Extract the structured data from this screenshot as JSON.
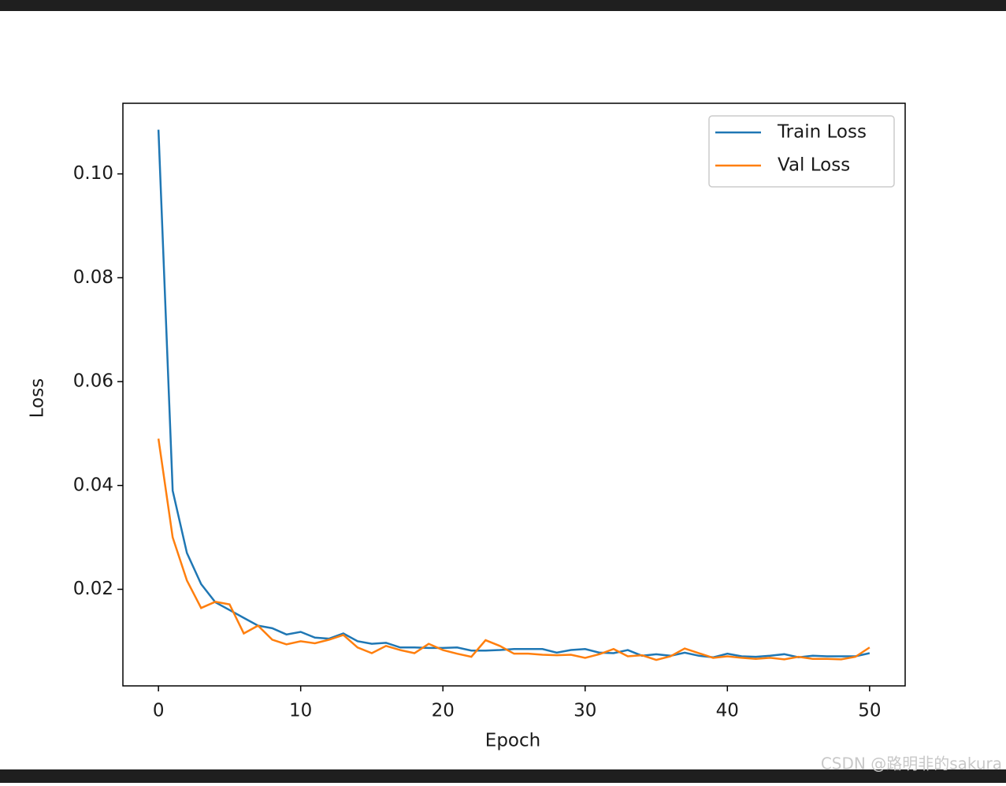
{
  "chart_data": {
    "type": "line",
    "xlabel": "Epoch",
    "ylabel": "Loss",
    "x": [
      0,
      1,
      2,
      3,
      4,
      5,
      6,
      7,
      8,
      9,
      10,
      11,
      12,
      13,
      14,
      15,
      16,
      17,
      18,
      19,
      20,
      21,
      22,
      23,
      24,
      25,
      26,
      27,
      28,
      29,
      30,
      31,
      32,
      33,
      34,
      35,
      36,
      37,
      38,
      39,
      40,
      41,
      42,
      43,
      44,
      45,
      46,
      47,
      48,
      49,
      50
    ],
    "series": [
      {
        "name": "Train Loss",
        "color": "#1f77b4",
        "values": [
          0.1085,
          0.039,
          0.027,
          0.021,
          0.0175,
          0.016,
          0.0145,
          0.013,
          0.0125,
          0.0113,
          0.0118,
          0.0107,
          0.0105,
          0.0115,
          0.01,
          0.0095,
          0.0097,
          0.0088,
          0.0088,
          0.0087,
          0.0087,
          0.0088,
          0.0082,
          0.0082,
          0.0083,
          0.0085,
          0.0085,
          0.0085,
          0.0078,
          0.0083,
          0.0085,
          0.0078,
          0.0077,
          0.0083,
          0.0072,
          0.0075,
          0.0072,
          0.0078,
          0.0072,
          0.0069,
          0.0076,
          0.0071,
          0.007,
          0.0072,
          0.0075,
          0.0069,
          0.0072,
          0.0071,
          0.0071,
          0.0071,
          0.0077
        ]
      },
      {
        "name": "Val Loss",
        "color": "#ff7f0e",
        "values": [
          0.049,
          0.03,
          0.0217,
          0.0164,
          0.0176,
          0.0171,
          0.0115,
          0.013,
          0.0103,
          0.0094,
          0.01,
          0.0096,
          0.0103,
          0.0112,
          0.0088,
          0.0077,
          0.0091,
          0.0083,
          0.0077,
          0.0095,
          0.0083,
          0.0076,
          0.007,
          0.0102,
          0.0091,
          0.0076,
          0.0076,
          0.0074,
          0.0073,
          0.0074,
          0.0068,
          0.0075,
          0.0085,
          0.0071,
          0.0073,
          0.0064,
          0.0071,
          0.0086,
          0.0077,
          0.0068,
          0.0071,
          0.0068,
          0.0066,
          0.0068,
          0.0065,
          0.007,
          0.0066,
          0.0066,
          0.0065,
          0.007,
          0.0088
        ]
      }
    ],
    "xlim": [
      -2.5,
      52.5
    ],
    "ylim": [
      0.0014,
      0.1136
    ],
    "xticks": [
      0,
      10,
      20,
      30,
      40,
      50
    ],
    "yticks": [
      0.02,
      0.04,
      0.06,
      0.08,
      {
        "value": 0.1,
        "label": "0.10"
      }
    ],
    "legend": "upper right",
    "watermark": "CSDN @路明非的sakura"
  }
}
